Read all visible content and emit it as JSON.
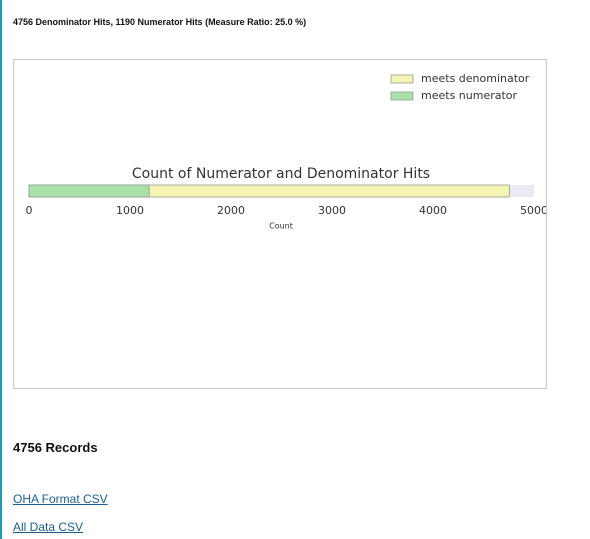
{
  "header": {
    "summary": "4756 Denominator Hits, 1190 Numerator Hits (Measure Ratio: 25.0 %)"
  },
  "chart_data": {
    "type": "bar",
    "orientation": "horizontal",
    "title": "Count of Numerator and Denominator Hits",
    "xlabel": "Count",
    "series": [
      {
        "name": "meets denominator",
        "color": "#f5f5b3",
        "values": [
          4756
        ]
      },
      {
        "name": "meets numerator",
        "color": "#a8e2a8",
        "values": [
          1190
        ]
      }
    ],
    "xlim": [
      0,
      5000
    ],
    "xticks": [
      0,
      1000,
      2000,
      3000,
      4000,
      5000
    ],
    "legend": "upper right",
    "background": "#eaeaf2"
  },
  "records": {
    "title": "4756 Records"
  },
  "links": [
    "OHA Format CSV",
    "All Data CSV"
  ]
}
